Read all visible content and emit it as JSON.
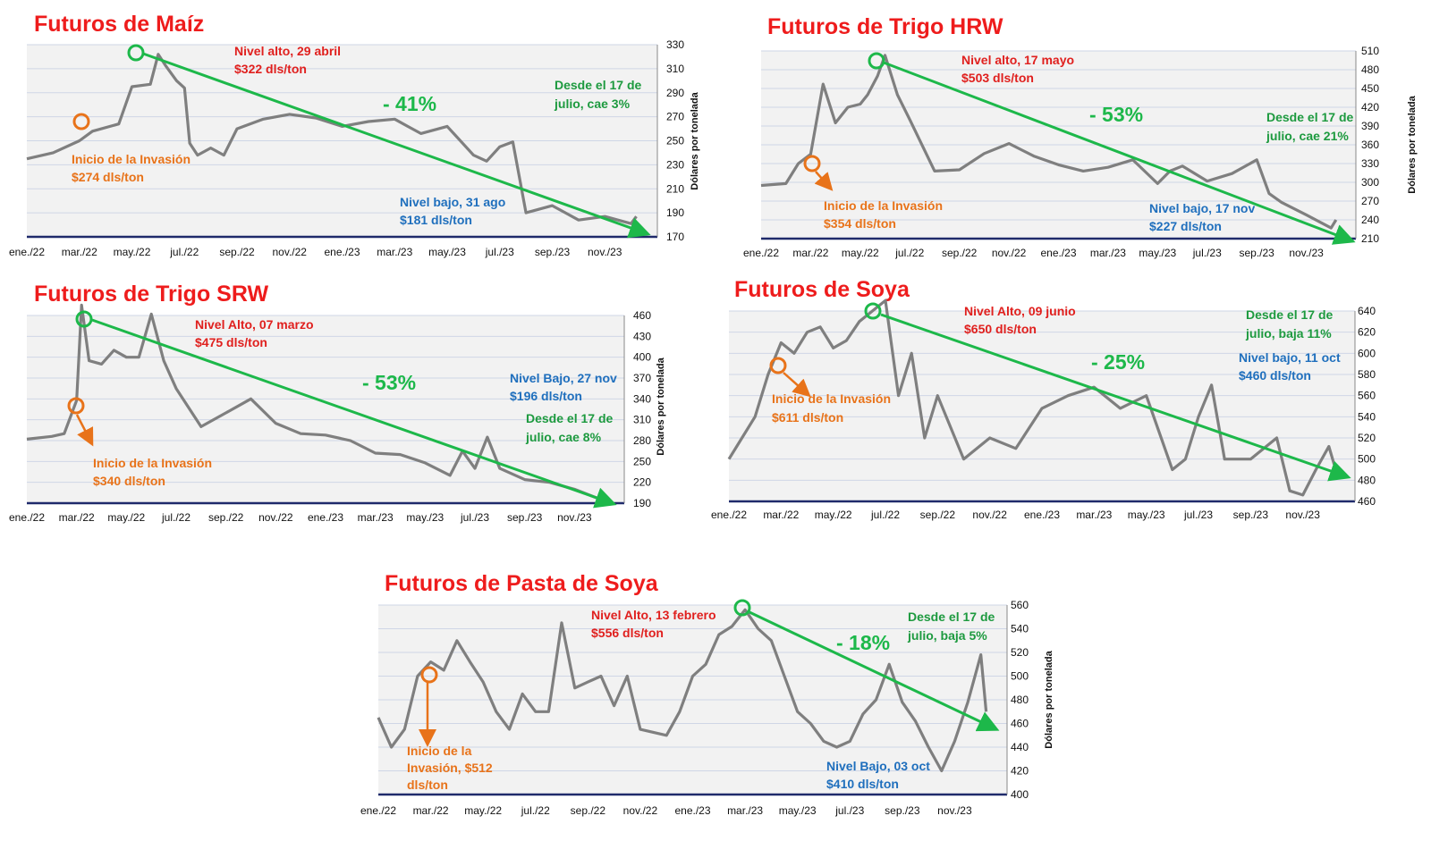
{
  "colors": {
    "title": "#ee1c1c",
    "line": "#7f7f7f",
    "plot_bg": "#f2f2f2",
    "grid": "#cfd6e6",
    "axis": "#1f2a6b",
    "arrow": "#1db84a",
    "high": "#e0201e",
    "invasion": "#e8731a",
    "low": "#1f6fbd",
    "since": "#1d9a3f",
    "pct": "#1db84a"
  },
  "chart_data": [
    {
      "type": "line",
      "title": "Futuros de Maíz",
      "ylabel": "Dólares por tonelada",
      "ylim": [
        170,
        330
      ],
      "yticks": [
        170,
        190,
        210,
        230,
        250,
        270,
        290,
        310,
        330
      ],
      "xticks": [
        "ene./22",
        "mar./22",
        "may./22",
        "jul./22",
        "sep./22",
        "nov./22",
        "ene./23",
        "mar./23",
        "may./23",
        "jul./23",
        "sep./23",
        "nov./23"
      ],
      "series": [
        {
          "x": [
            0,
            1,
            2,
            2.5,
            3.5,
            4,
            4.7,
            5,
            5.3,
            5.7,
            6,
            6.2,
            6.5,
            7,
            7.5,
            8,
            9,
            10,
            11,
            12,
            13,
            14,
            14.5,
            15,
            16,
            17,
            17.5,
            18,
            18.5,
            19,
            20,
            21,
            22,
            23,
            23.2
          ],
          "y": [
            235,
            240,
            250,
            258,
            264,
            295,
            297,
            322,
            312,
            300,
            294,
            248,
            238,
            244,
            238,
            260,
            268,
            272,
            269,
            262,
            266,
            268,
            262,
            256,
            262,
            238,
            233,
            245,
            249,
            190,
            196,
            184,
            187,
            181,
            187
          ]
        }
      ],
      "annotations": {
        "high_line1": "Nivel alto, 29 abril",
        "high_line2": "$322 dls/ton",
        "invasion_line1": "Inicio de la Invasión",
        "invasion_line2": "$274 dls/ton",
        "low_line1": "Nivel bajo, 31 ago",
        "low_line2": "$181 dls/ton",
        "since_line1": "Desde el 17 de",
        "since_line2": "julio, cae 3%",
        "change": "- 41%"
      }
    },
    {
      "type": "line",
      "title": "Futuros de Trigo HRW",
      "ylabel": "Dólares por tonelada",
      "ylim": [
        210,
        510
      ],
      "yticks": [
        210,
        240,
        270,
        300,
        330,
        360,
        390,
        420,
        450,
        480,
        510
      ],
      "xticks": [
        "ene./22",
        "mar./22",
        "may./22",
        "jul./22",
        "sep./22",
        "nov./22",
        "ene./23",
        "mar./23",
        "may./23",
        "jul./23",
        "sep./23",
        "nov./23"
      ],
      "series": [
        {
          "x": [
            0,
            1,
            1.5,
            2,
            2.5,
            3,
            3.5,
            4,
            4.3,
            4.7,
            5,
            5.5,
            6,
            7,
            8,
            9,
            10,
            11,
            12,
            13,
            14,
            15,
            16,
            16.5,
            17,
            18,
            19,
            20,
            20.5,
            21,
            22,
            23,
            23.2
          ],
          "y": [
            295,
            298,
            330,
            345,
            457,
            395,
            420,
            425,
            440,
            470,
            503,
            440,
            400,
            318,
            320,
            346,
            362,
            342,
            328,
            318,
            324,
            336,
            298,
            318,
            326,
            302,
            314,
            336,
            282,
            268,
            248,
            227,
            240
          ]
        }
      ],
      "annotations": {
        "high_line1": "Nivel alto, 17 mayo",
        "high_line2": "$503 dls/ton",
        "invasion_line1": "Inicio de la Invasión",
        "invasion_line2": "$354 dls/ton",
        "low_line1": "Nivel bajo, 17 nov",
        "low_line2": "$227 dls/ton",
        "since_line1": "Desde el 17 de",
        "since_line2": "julio, cae 21%",
        "change": "- 53%"
      }
    },
    {
      "type": "line",
      "title": "Futuros de Trigo SRW",
      "ylabel": "Dólares por tonelada",
      "ylim": [
        190,
        460
      ],
      "yticks": [
        190,
        220,
        250,
        280,
        310,
        340,
        370,
        400,
        430,
        460
      ],
      "xticks": [
        "ene./22",
        "mar./22",
        "may./22",
        "jul./22",
        "sep./22",
        "nov./22",
        "ene./23",
        "mar./23",
        "may./23",
        "jul./23",
        "sep./23",
        "nov./23"
      ],
      "series": [
        {
          "x": [
            0,
            1,
            1.5,
            2,
            2.2,
            2.5,
            3,
            3.5,
            4,
            4.5,
            5,
            5.5,
            6,
            7,
            8,
            9,
            10,
            11,
            12,
            13,
            14,
            15,
            16,
            17,
            17.5,
            18,
            18.5,
            19,
            20,
            21,
            22,
            23,
            23.2
          ],
          "y": [
            282,
            286,
            290,
            338,
            475,
            395,
            390,
            410,
            400,
            400,
            462,
            395,
            355,
            300,
            320,
            340,
            305,
            290,
            288,
            280,
            262,
            260,
            248,
            230,
            265,
            240,
            285,
            240,
            224,
            220,
            210,
            196,
            205
          ]
        }
      ],
      "annotations": {
        "high_line1": "Nivel Alto, 07 marzo",
        "high_line2": "$475 dls/ton",
        "invasion_line1": "Inicio de la Invasión",
        "invasion_line2": "$340 dls/ton",
        "low_line1": "Nivel Bajo, 27 nov",
        "low_line2": "$196 dls/ton",
        "since_line1": "Desde el 17 de",
        "since_line2": "julio, cae 8%",
        "change": "- 53%"
      }
    },
    {
      "type": "line",
      "title": "Futuros de Soya",
      "ylabel": "Dólares por tonelada",
      "ylim": [
        460,
        640
      ],
      "yticks": [
        460,
        480,
        500,
        520,
        540,
        560,
        580,
        600,
        620,
        640
      ],
      "xticks": [
        "ene./22",
        "mar./22",
        "may./22",
        "jul./22",
        "sep./22",
        "nov./22",
        "ene./23",
        "mar./23",
        "may./23",
        "jul./23",
        "sep./23",
        "nov./23"
      ],
      "series": [
        {
          "x": [
            0,
            0.5,
            1,
            1.5,
            2,
            2.5,
            3,
            3.5,
            4,
            4.5,
            5,
            5.5,
            6,
            6.5,
            7,
            7.5,
            8,
            9,
            10,
            11,
            12,
            13,
            14,
            15,
            16,
            17,
            17.5,
            18,
            18.5,
            19,
            20,
            21,
            21.5,
            22,
            22.5,
            23,
            23.2
          ],
          "y": [
            500,
            520,
            540,
            580,
            610,
            600,
            620,
            625,
            605,
            612,
            630,
            640,
            650,
            560,
            600,
            520,
            560,
            500,
            520,
            510,
            548,
            560,
            568,
            548,
            560,
            490,
            500,
            540,
            570,
            500,
            500,
            520,
            470,
            466,
            490,
            512,
            495
          ]
        }
      ],
      "annotations": {
        "high_line1": "Nivel Alto, 09 junio",
        "high_line2": "$650 dls/ton",
        "invasion_line1": "Inicio de la Invasión",
        "invasion_line2": "$611 dls/ton",
        "low_line1": "Nivel bajo, 11 oct",
        "low_line2": "$460 dls/ton",
        "since_line1": "Desde el 17 de",
        "since_line2": "julio, baja 11%",
        "change": "- 25%"
      }
    },
    {
      "type": "line",
      "title": "Futuros de Pasta de Soya",
      "ylabel": "Dólares por tonelada",
      "ylim": [
        400,
        560
      ],
      "yticks": [
        400,
        420,
        440,
        460,
        480,
        500,
        520,
        540,
        560
      ],
      "xticks": [
        "ene./22",
        "mar./22",
        "may./22",
        "jul./22",
        "sep./22",
        "nov./22",
        "ene./23",
        "mar./23",
        "may./23",
        "jul./23",
        "sep./23",
        "nov./23"
      ],
      "series": [
        {
          "x": [
            0,
            0.5,
            1,
            1.5,
            2,
            2.5,
            3,
            3.5,
            4,
            4.5,
            5,
            5.5,
            6,
            6.5,
            7,
            7.5,
            8,
            8.5,
            9,
            9.5,
            10,
            11,
            11.5,
            12,
            12.5,
            13,
            13.5,
            14,
            14.5,
            15,
            15.5,
            16,
            16.5,
            17,
            17.5,
            18,
            18.5,
            19,
            19.5,
            20,
            20.5,
            21,
            21.5,
            22,
            22.5,
            23,
            23.2
          ],
          "y": [
            465,
            440,
            455,
            500,
            512,
            505,
            530,
            512,
            495,
            470,
            455,
            485,
            470,
            470,
            545,
            490,
            495,
            500,
            475,
            500,
            455,
            450,
            470,
            500,
            510,
            535,
            542,
            556,
            540,
            530,
            500,
            470,
            460,
            445,
            440,
            445,
            468,
            480,
            510,
            478,
            462,
            440,
            420,
            445,
            478,
            518,
            470
          ]
        }
      ],
      "annotations": {
        "high_line1": "Nivel Alto, 13 febrero",
        "high_line2": "$556 dls/ton",
        "invasion_line1": "Inicio de la",
        "invasion_line2": "Invasión, $512",
        "invasion_line3": "dls/ton",
        "low_line1": "Nivel Bajo, 03 oct",
        "low_line2": "$410 dls/ton",
        "since_line1": "Desde el 17 de",
        "since_line2": "julio, baja 5%",
        "change": "- 18%"
      }
    }
  ]
}
